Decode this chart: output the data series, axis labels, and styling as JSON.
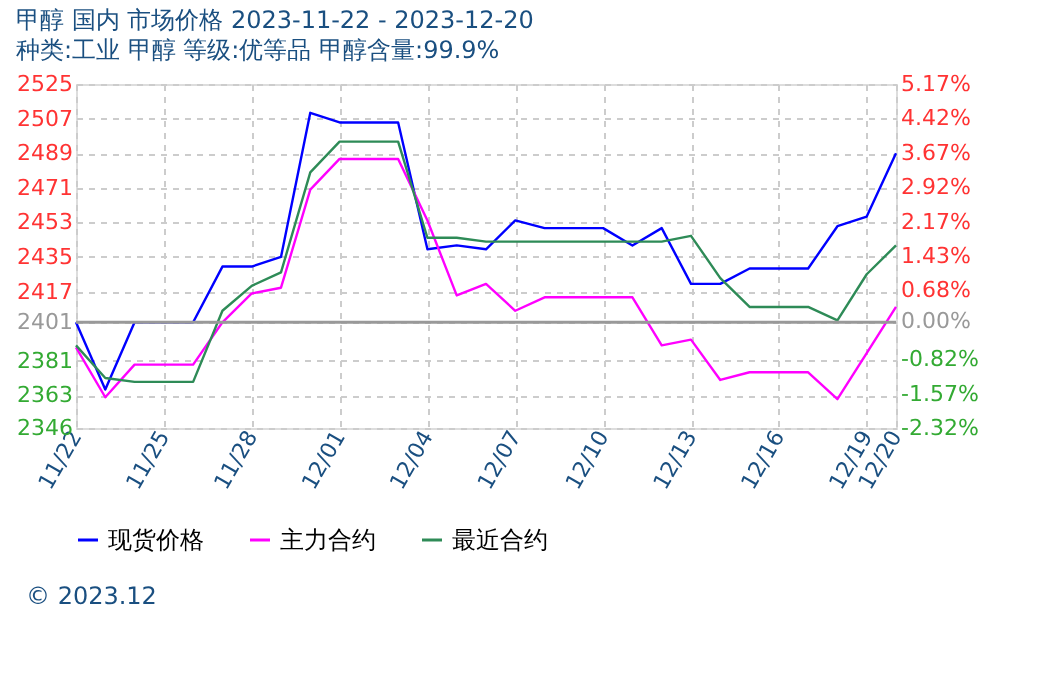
{
  "chart_data": {
    "type": "line",
    "title": "甲醇  国内  市场价格  2023-11-22 - 2023-12-20",
    "subtitle": "种类:工业 甲醇  等级:优等品  甲醇含量:99.9%",
    "x": [
      "2023-11-22",
      "2023-11-23",
      "2023-11-24",
      "2023-11-26",
      "2023-11-27",
      "2023-11-28",
      "2023-11-29",
      "2023-11-30",
      "2023-12-01",
      "2023-12-03",
      "2023-12-04",
      "2023-12-05",
      "2023-12-06",
      "2023-12-07",
      "2023-12-08",
      "2023-12-10",
      "2023-12-11",
      "2023-12-12",
      "2023-12-13",
      "2023-12-14",
      "2023-12-15",
      "2023-12-17",
      "2023-12-18",
      "2023-12-19",
      "2023-12-20"
    ],
    "series": [
      {
        "name": "现货价格",
        "color": "#0000ff",
        "values": [
          2401,
          2366,
          2401,
          2401,
          2430,
          2430,
          2435,
          2510,
          2505,
          2505,
          2439,
          2441,
          2439,
          2454,
          2450,
          2450,
          2441,
          2450,
          2421,
          2421,
          2429,
          2429,
          2451,
          2456,
          2489
        ]
      },
      {
        "name": "主力合约",
        "color": "#ff00ff",
        "values": [
          2388,
          2362,
          2379,
          2379,
          2401,
          2416,
          2419,
          2470,
          2486,
          2486,
          2454,
          2415,
          2421,
          2407,
          2414,
          2414,
          2414,
          2389,
          2392,
          2371,
          2375,
          2375,
          2361,
          2385,
          2409
        ]
      },
      {
        "name": "最近合约",
        "color": "#2e8b57",
        "values": [
          2389,
          2372,
          2370,
          2370,
          2407,
          2420,
          2427,
          2479,
          2495,
          2495,
          2445,
          2445,
          2443,
          2443,
          2443,
          2443,
          2443,
          2443,
          2446,
          2424,
          2409,
          2409,
          2402,
          2426,
          2441
        ]
      }
    ],
    "xlim": [
      "2023-11-22",
      "2023-12-20"
    ],
    "xticks": [
      {
        "value": "2023-11-22",
        "label": "11/22"
      },
      {
        "value": "2023-11-25",
        "label": "11/25"
      },
      {
        "value": "2023-11-28",
        "label": "11/28"
      },
      {
        "value": "2023-12-01",
        "label": "12/01"
      },
      {
        "value": "2023-12-04",
        "label": "12/04"
      },
      {
        "value": "2023-12-07",
        "label": "12/07"
      },
      {
        "value": "2023-12-10",
        "label": "12/10"
      },
      {
        "value": "2023-12-13",
        "label": "12/13"
      },
      {
        "value": "2023-12-16",
        "label": "12/16"
      },
      {
        "value": "2023-12-19",
        "label": "12/19"
      },
      {
        "value": "2023-12-20",
        "label": "12/20"
      }
    ],
    "ylim": [
      2346,
      2525
    ],
    "yticks": [
      2346,
      2363,
      2381,
      2401,
      2417,
      2435,
      2453,
      2471,
      2489,
      2507,
      2525
    ],
    "y2lim": [
      -2.32,
      5.17
    ],
    "y2ticks": [
      {
        "value": -2.32,
        "label": "-2.32%"
      },
      {
        "value": -1.57,
        "label": "-1.57%"
      },
      {
        "value": -0.82,
        "label": "-0.82%"
      },
      {
        "value": 0,
        "label": "0.00%"
      },
      {
        "value": 0.68,
        "label": "0.68%"
      },
      {
        "value": 1.43,
        "label": "1.43%"
      },
      {
        "value": 2.17,
        "label": "2.17%"
      },
      {
        "value": 2.92,
        "label": "2.92%"
      },
      {
        "value": 3.67,
        "label": "3.67%"
      },
      {
        "value": 4.42,
        "label": "4.42%"
      },
      {
        "value": 5.17,
        "label": "5.17%"
      }
    ],
    "ref_lines": [
      {
        "axis": "y",
        "value": 2401,
        "color": "#999999"
      }
    ],
    "grid": true,
    "legend": "bottom",
    "marker": "none",
    "line_style": "solid",
    "annotations": [
      "© 2023.12"
    ]
  }
}
